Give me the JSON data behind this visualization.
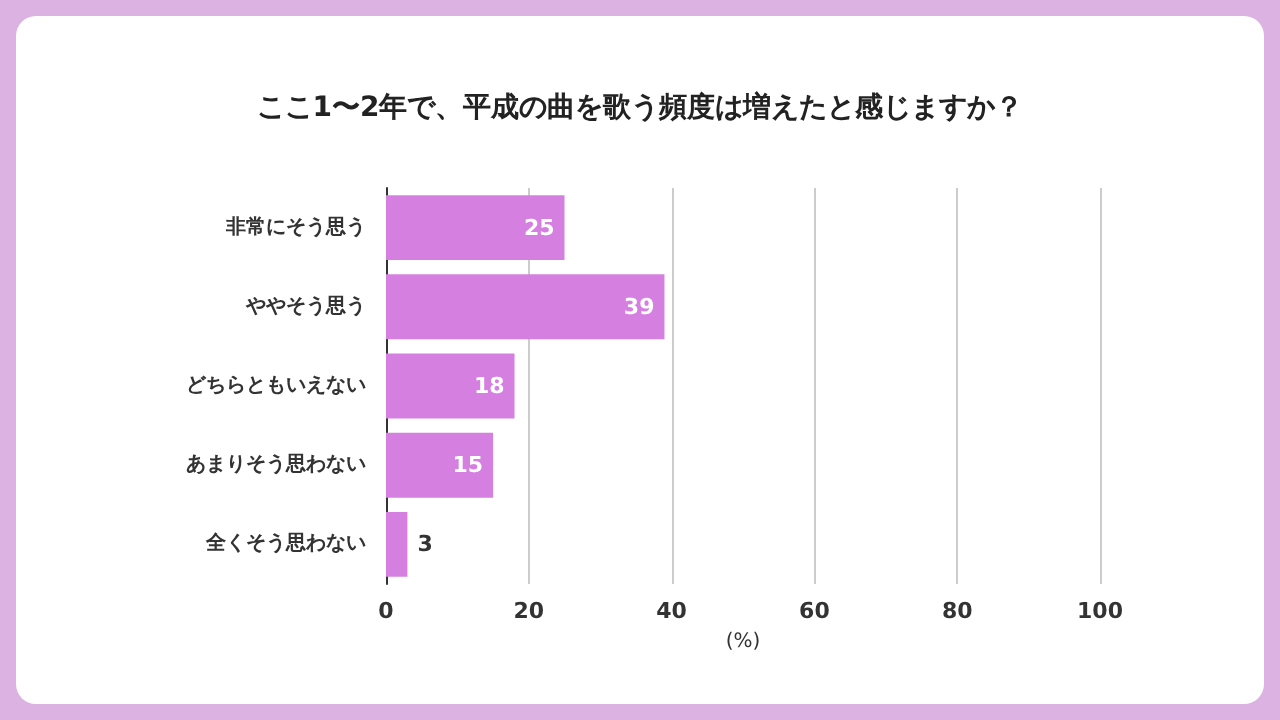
{
  "chart_data": {
    "type": "bar",
    "orientation": "horizontal",
    "title": "ここ1〜2年で、平成の曲を歌う頻度は増えたと感じますか？",
    "categories": [
      "非常にそう思う",
      "ややそう思う",
      "どちらともいえない",
      "あまりそう思わない",
      "全くそう思わない"
    ],
    "values": [
      25,
      39,
      18,
      15,
      3
    ],
    "color": "#d580e0",
    "xlim": [
      0,
      100
    ],
    "xticks": [
      0,
      20,
      40,
      60,
      80,
      100
    ],
    "xlabel": "(%)",
    "grid": "x",
    "data_labels": true
  }
}
